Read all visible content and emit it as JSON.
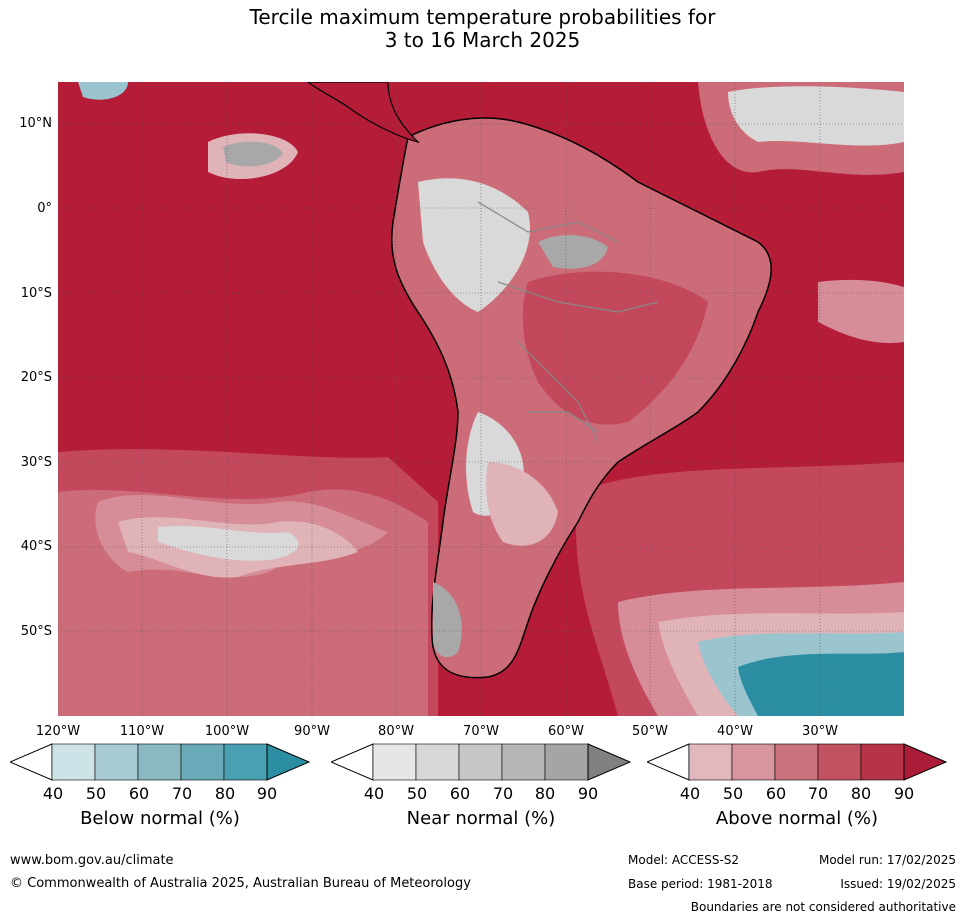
{
  "title": {
    "line1": "Tercile maximum temperature probabilities for",
    "line2": "3 to 16 March 2025"
  },
  "map": {
    "latitude_labels": [
      "10°N",
      "0°",
      "10°S",
      "20°S",
      "30°S",
      "40°S",
      "50°S"
    ],
    "longitude_labels": [
      "120°W",
      "110°W",
      "100°W",
      "90°W",
      "80°W",
      "70°W",
      "60°W",
      "50°W",
      "40°W",
      "30°W"
    ],
    "colors": {
      "above_90": "#b41c38",
      "above_80": "#c3485b",
      "above_70": "#cc6c79",
      "above_60": "#d68d97",
      "above_50": "#e0b3b9",
      "near": "#d9d9d9",
      "near_dark": "#a8a8a8",
      "below": "#2b8ea3",
      "below_light": "#9ac5ce",
      "land_outline": "#000000",
      "border": "#888888"
    }
  },
  "colorbars": {
    "below": {
      "title": "Below normal (%)",
      "ticks": [
        "40",
        "50",
        "60",
        "70",
        "80",
        "90"
      ],
      "colors": [
        "#ffffff",
        "#cde3e8",
        "#a8cbd3",
        "#8ab9c3",
        "#6aa9b8",
        "#49a0b2",
        "#2b8ea3"
      ]
    },
    "near": {
      "title": "Near normal (%)",
      "ticks": [
        "40",
        "50",
        "60",
        "70",
        "80",
        "90"
      ],
      "colors": [
        "#ffffff",
        "#e6e6e6",
        "#d7d7d7",
        "#c6c6c6",
        "#b6b6b6",
        "#a5a5a5",
        "#808080"
      ]
    },
    "above": {
      "title": "Above normal (%)",
      "ticks": [
        "40",
        "50",
        "60",
        "70",
        "80",
        "90"
      ],
      "colors": [
        "#ffffff",
        "#e2b7bd",
        "#d7959d",
        "#ca737e",
        "#c2525f",
        "#b73448",
        "#aa1c38"
      ]
    }
  },
  "footer": {
    "website": "www.bom.gov.au/climate",
    "copyright": "© Commonwealth of Australia 2025, Australian Bureau of Meteorology",
    "model": "Model: ACCESS-S2",
    "base_period": "Base period: 1981-2018",
    "model_run": "Model run: 17/02/2025",
    "issued": "Issued: 19/02/2025",
    "boundaries": "Boundaries are not considered authoritative"
  }
}
